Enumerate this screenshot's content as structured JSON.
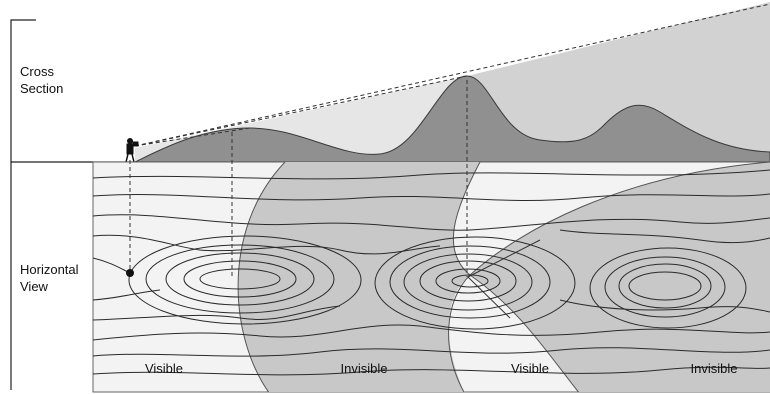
{
  "sections": {
    "cross_section": [
      "Cross",
      "Section"
    ],
    "horizontal_view": [
      "Horizontal",
      "View"
    ]
  },
  "zones": [
    "Visible",
    "Invisible",
    "Visible",
    "Invisible"
  ],
  "colors": {
    "map_background": "#f2f2f2",
    "invisible_shade": "#c9c9c9",
    "terrain_fill": "#8f8f8f",
    "contour": "#2a2a2a",
    "sight_line": "#333333"
  }
}
